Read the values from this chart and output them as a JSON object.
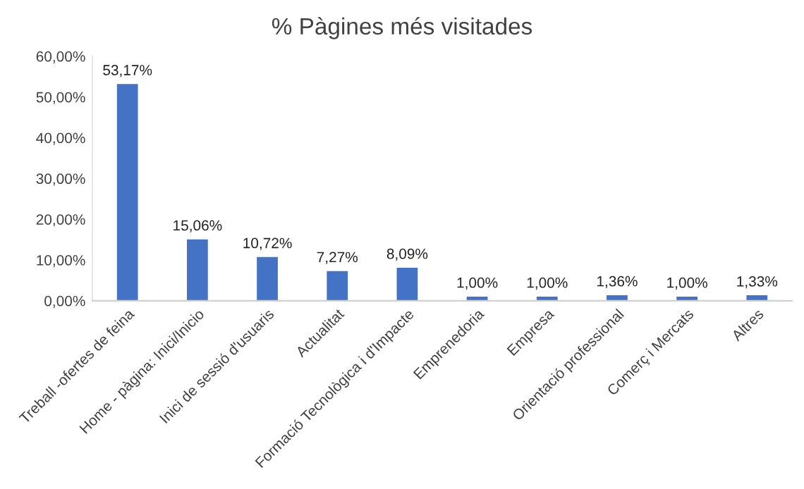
{
  "chart_data": {
    "type": "bar",
    "title": "% Pàgines més visitades",
    "categories": [
      "Treball -ofertes de feina",
      "Home - pàgina: Inici/Inicio",
      "Inici de sessió d'usuaris",
      "Actualitat",
      "Formació Tecnològica i d'Impacte",
      "Emprenedoria",
      "Empresa",
      "Orientació professional",
      "Comerç i Mercats",
      "Altres"
    ],
    "values": [
      53.17,
      15.06,
      10.72,
      7.27,
      8.09,
      1.0,
      1.0,
      1.36,
      1.0,
      1.33
    ],
    "value_labels": [
      "53,17%",
      "15,06%",
      "10,72%",
      "7,27%",
      "8,09%",
      "1,00%",
      "1,00%",
      "1,36%",
      "1,00%",
      "1,33%"
    ],
    "color": "#4472c4",
    "ylim": [
      0,
      60
    ],
    "yticks": [
      {
        "value": 0,
        "label": "0,00%"
      },
      {
        "value": 10,
        "label": "10,00%"
      },
      {
        "value": 20,
        "label": "20,00%"
      },
      {
        "value": 30,
        "label": "30,00%"
      },
      {
        "value": 40,
        "label": "40,00%"
      },
      {
        "value": 50,
        "label": "50,00%"
      },
      {
        "value": 60,
        "label": "60,00%"
      }
    ],
    "grid": false,
    "legend": false
  }
}
